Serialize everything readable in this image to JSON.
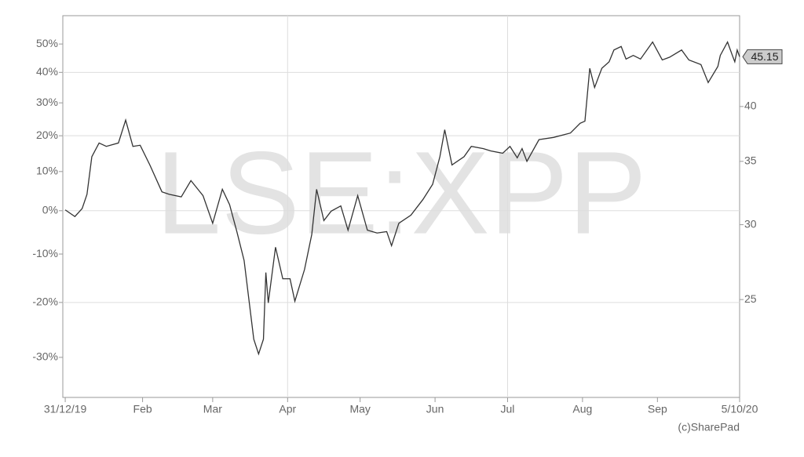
{
  "chart_data": {
    "type": "line",
    "watermark": "LSE:XPP",
    "credit": "(c)SharePad",
    "x": [
      "2019-12-31",
      "2020-01-04",
      "2020-01-07",
      "2020-01-09",
      "2020-01-11",
      "2020-01-14",
      "2020-01-17",
      "2020-01-22",
      "2020-01-25",
      "2020-01-28",
      "2020-01-31",
      "2020-02-04",
      "2020-02-09",
      "2020-02-12",
      "2020-02-17",
      "2020-02-21",
      "2020-02-26",
      "2020-03-01",
      "2020-03-05",
      "2020-03-08",
      "2020-03-11",
      "2020-03-14",
      "2020-03-18",
      "2020-03-20",
      "2020-03-22",
      "2020-03-23",
      "2020-03-24",
      "2020-03-27",
      "2020-03-30",
      "2020-04-02",
      "2020-04-04",
      "2020-04-08",
      "2020-04-11",
      "2020-04-13",
      "2020-04-16",
      "2020-04-19",
      "2020-04-23",
      "2020-04-26",
      "2020-04-30",
      "2020-05-04",
      "2020-05-08",
      "2020-05-12",
      "2020-05-14",
      "2020-05-17",
      "2020-05-22",
      "2020-05-27",
      "2020-05-31",
      "2020-06-03",
      "2020-06-05",
      "2020-06-08",
      "2020-06-13",
      "2020-06-16",
      "2020-06-21",
      "2020-06-24",
      "2020-06-29",
      "2020-07-02",
      "2020-07-05",
      "2020-07-07",
      "2020-07-09",
      "2020-07-14",
      "2020-07-20",
      "2020-07-27",
      "2020-07-31",
      "2020-08-02",
      "2020-08-04",
      "2020-08-06",
      "2020-08-09",
      "2020-08-12",
      "2020-08-14",
      "2020-08-17",
      "2020-08-19",
      "2020-08-22",
      "2020-08-25",
      "2020-08-30",
      "2020-09-03",
      "2020-09-06",
      "2020-09-11",
      "2020-09-14",
      "2020-09-19",
      "2020-09-22",
      "2020-09-26",
      "2020-09-27",
      "2020-09-30",
      "2020-10-02",
      "2020-10-03",
      "2020-10-04",
      "2020-10-05"
    ],
    "series": [
      {
        "color": "#333333",
        "values": [
          31.1,
          30.6,
          31.2,
          32.3,
          35.4,
          36.6,
          36.3,
          36.6,
          38.7,
          36.3,
          36.4,
          34.7,
          32.5,
          32.3,
          32.1,
          33.4,
          32.2,
          30.1,
          32.7,
          31.5,
          29.5,
          27.5,
          22.7,
          21.9,
          22.7,
          26.7,
          24.8,
          28.4,
          26.3,
          26.3,
          24.9,
          26.9,
          29.3,
          32.7,
          30.3,
          31.0,
          31.4,
          29.6,
          32.2,
          29.6,
          29.4,
          29.5,
          28.5,
          30.1,
          30.7,
          31.9,
          33.1,
          35.4,
          37.8,
          34.7,
          35.4,
          36.3,
          36.1,
          35.9,
          35.7,
          36.3,
          35.3,
          36.1,
          35.0,
          36.9,
          37.1,
          37.5,
          38.4,
          38.6,
          43.9,
          41.9,
          43.9,
          44.6,
          45.9,
          46.3,
          44.9,
          45.3,
          44.9,
          46.8,
          44.8,
          45.1,
          45.9,
          44.8,
          44.3,
          42.4,
          44.1,
          45.3,
          46.8,
          45.3,
          44.6,
          45.9,
          45.15
        ]
      }
    ],
    "last_value": 45.15,
    "xlim": [
      "2019-12-30",
      "2020-10-05"
    ],
    "xticks": [
      {
        "value": "2019-12-31",
        "label": "31/12/19"
      },
      {
        "value": "2020-02-01",
        "label": "Feb"
      },
      {
        "value": "2020-03-01",
        "label": "Mar"
      },
      {
        "value": "2020-04-01",
        "label": "Apr"
      },
      {
        "value": "2020-05-01",
        "label": "May"
      },
      {
        "value": "2020-06-01",
        "label": "Jun"
      },
      {
        "value": "2020-07-01",
        "label": "Jul"
      },
      {
        "value": "2020-08-01",
        "label": "Aug"
      },
      {
        "value": "2020-09-01",
        "label": "Sep"
      },
      {
        "value": "2020-10-05",
        "label": "5/10/20"
      }
    ],
    "xgrid": [
      "2020-04-01",
      "2020-07-01"
    ],
    "yscale": "log",
    "ylim": [
      19.7,
      49.9
    ],
    "yticks": [
      25,
      30,
      35,
      40
    ],
    "y2lim": [
      -36.5,
      60.7
    ],
    "y2ticks": [
      {
        "value": 50,
        "label": "50%"
      },
      {
        "value": 40,
        "label": "40%"
      },
      {
        "value": 30,
        "label": "30%"
      },
      {
        "value": 20,
        "label": "20%"
      },
      {
        "value": 10,
        "label": "10%"
      },
      {
        "value": 0,
        "label": "0%"
      },
      {
        "value": -10,
        "label": "-10%"
      },
      {
        "value": -20,
        "label": "-20%"
      },
      {
        "value": -30,
        "label": "-30%"
      }
    ],
    "y2grid": [
      40,
      20,
      0,
      -20
    ]
  }
}
